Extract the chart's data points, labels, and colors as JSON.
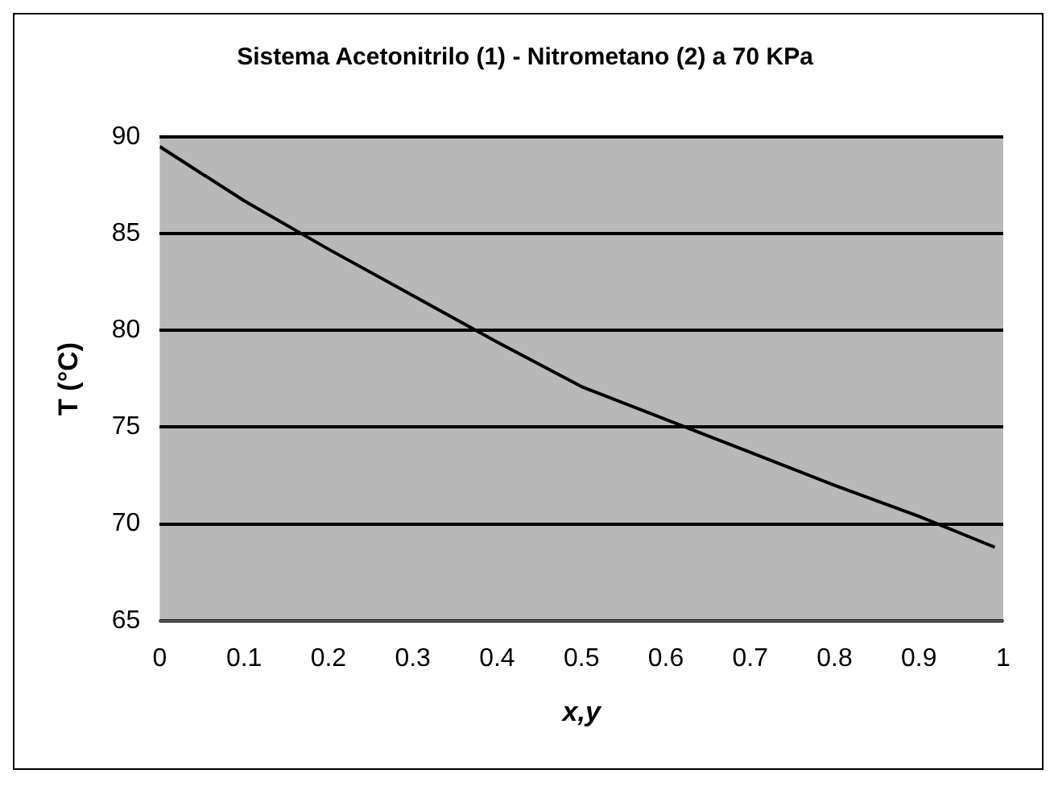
{
  "chart_data": {
    "type": "line",
    "title": "Sistema Acetonitrilo (1) - Nitrometano (2) a 70 KPa",
    "xlabel": "x,y",
    "ylabel": "T (°C)",
    "x": [
      0,
      0.1,
      0.2,
      0.3,
      0.4,
      0.5,
      0.6,
      0.7,
      0.8,
      0.9,
      0.99
    ],
    "series": [
      {
        "color": "#000000",
        "values": [
          89.5,
          86.7,
          84.2,
          81.8,
          79.4,
          77.1,
          75.4,
          73.7,
          72,
          70.4,
          68.8
        ]
      }
    ],
    "xlim": [
      0,
      1
    ],
    "xticks": [
      0,
      0.1,
      0.2,
      0.3,
      0.4,
      0.5,
      0.6,
      0.7,
      0.8,
      0.9,
      1
    ],
    "ylim": [
      65,
      90
    ],
    "yticks": [
      65,
      70,
      75,
      80,
      85,
      90
    ],
    "grid": "y",
    "legend": false,
    "marker": "none",
    "line_style": "solid"
  }
}
